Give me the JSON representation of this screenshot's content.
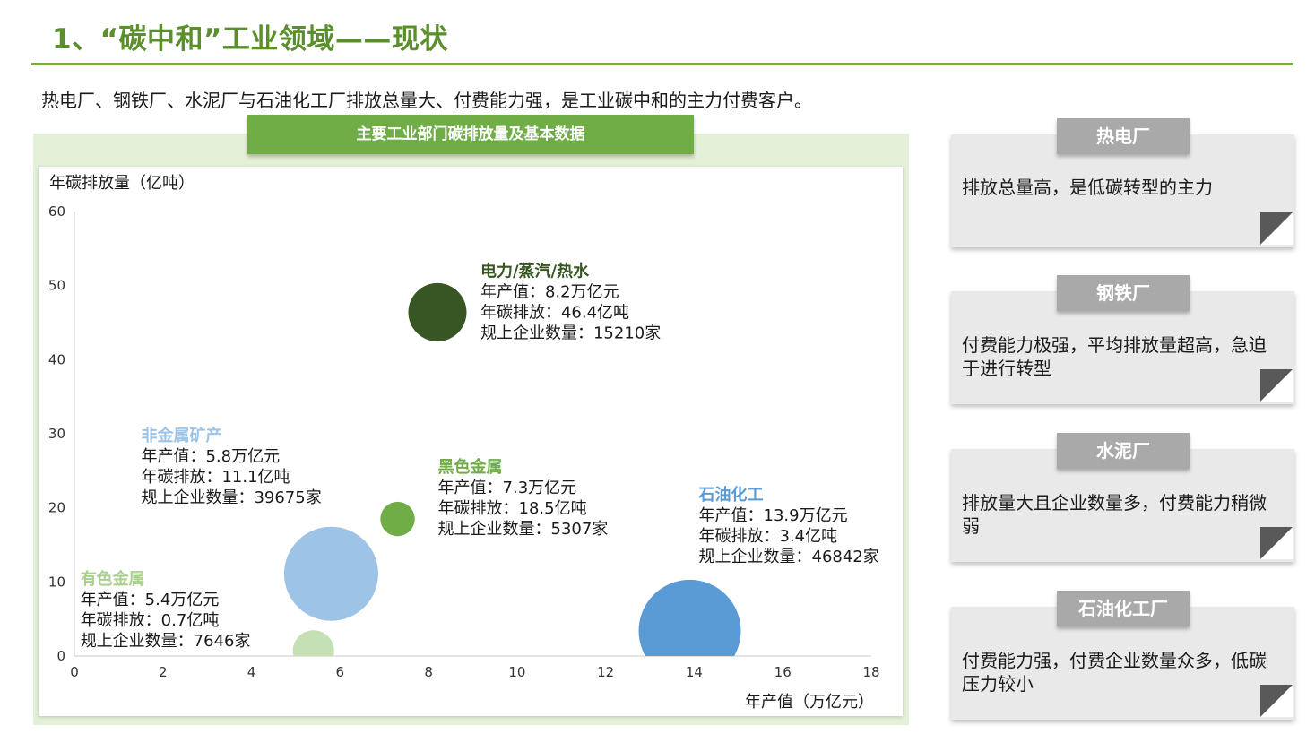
{
  "slide": {
    "title": "1、“碳中和”工业领域——现状",
    "subtitle": "热电厂、钢铁厂、水泥厂与石油化工厂排放总量大、付费能力强，是工业碳中和的主力付费客户。"
  },
  "chart_banner": "主要工业部门碳排放量及基本数据",
  "chart_data": {
    "type": "scatter",
    "ylabel": "年碳排放量（亿吨）",
    "xlabel": "年产值（万亿元）",
    "xlim": [
      0,
      18
    ],
    "ylim": [
      0,
      60
    ],
    "x_ticks": [
      "0",
      "2",
      "4",
      "6",
      "8",
      "10",
      "12",
      "14",
      "16",
      "18"
    ],
    "y_ticks": [
      "0",
      "10",
      "20",
      "30",
      "40",
      "50",
      "60"
    ],
    "grid": false,
    "points": [
      {
        "name": "电力/蒸汽/热水",
        "x": 8.2,
        "y": 46.4,
        "size": 15210,
        "color": "#375623",
        "label_color": "#375623",
        "lines": [
          "年产值：8.2万亿元",
          "年碳排放：46.4亿吨",
          "规上企业数量：15210家"
        ]
      },
      {
        "name": "非金属矿产",
        "x": 5.8,
        "y": 11.1,
        "size": 39675,
        "color": "#9dc3e6",
        "label_color": "#9dc3e6",
        "lines": [
          "年产值：5.8万亿元",
          "年碳排放：11.1亿吨",
          "规上企业数量：39675家"
        ]
      },
      {
        "name": "黑色金属",
        "x": 7.3,
        "y": 18.5,
        "size": 5307,
        "color": "#70ad47",
        "label_color": "#70ad47",
        "lines": [
          "年产值：7.3万亿元",
          "年碳排放：18.5亿吨",
          "规上企业数量：5307家"
        ]
      },
      {
        "name": "石油化工",
        "x": 13.9,
        "y": 3.4,
        "size": 46842,
        "color": "#5b9bd5",
        "label_color": "#5b9bd5",
        "lines": [
          "年产值：13.9万亿元",
          "年碳排放：3.4亿吨",
          "规上企业数量：46842家"
        ]
      },
      {
        "name": "有色金属",
        "x": 5.4,
        "y": 0.7,
        "size": 7646,
        "color": "#c5e0b4",
        "label_color": "#a9d18e",
        "lines": [
          "年产值：5.4万亿元",
          "年碳排放：0.7亿吨",
          "规上企业数量：7646家"
        ]
      }
    ]
  },
  "cards": [
    {
      "tab": "热电厂",
      "text": "排放总量高，是低碳转型的主力"
    },
    {
      "tab": "钢铁厂",
      "text": "付费能力极强，平均排放量超高，急迫于进行转型"
    },
    {
      "tab": "水泥厂",
      "text": "排放量大且企业数量多，付费能力稍微弱"
    },
    {
      "tab": "石油化工厂",
      "text": "付费能力强，付费企业数量众多，低碳压力较小"
    }
  ]
}
